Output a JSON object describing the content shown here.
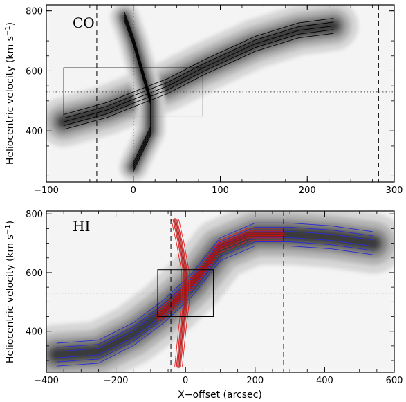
{
  "chart_data": [
    {
      "type": "contour",
      "panel_label": "CO",
      "xlabel": "",
      "ylabel": "Heliocentric velocity (km s",
      "ylabel_sup": "−1",
      "ylabel_close": ")",
      "xlim": [
        -100,
        300
      ],
      "ylim": [
        230,
        820
      ],
      "xticks": [
        -100,
        0,
        100,
        200,
        300
      ],
      "xtick_labels": [
        "−100",
        "0",
        "100",
        "200",
        "300"
      ],
      "yticks": [
        400,
        600,
        800
      ],
      "ytick_labels": [
        "400",
        "600",
        "800"
      ],
      "grayscale_ridges": [
        {
          "points": [
            [
              -80,
              430
            ],
            [
              -30,
              470
            ],
            [
              0,
              505
            ],
            [
              40,
              550
            ],
            [
              80,
              610
            ],
            [
              140,
              690
            ],
            [
              190,
              735
            ],
            [
              230,
              750
            ]
          ],
          "width": 45
        },
        {
          "points": [
            [
              -10,
              780
            ],
            [
              0,
              700
            ],
            [
              10,
              600
            ],
            [
              20,
              500
            ],
            [
              20,
              400
            ],
            [
              0,
              280
            ]
          ],
          "width": 26
        }
      ],
      "dashed_vlines": [
        -42,
        282
      ],
      "dotted_vline": 0,
      "dotted_hline": 530,
      "box": {
        "x": [
          -80,
          80
        ],
        "y": [
          450,
          610
        ]
      },
      "contour_color": "#000000"
    },
    {
      "type": "contour",
      "panel_label": "HI",
      "xlabel": "X−offset (arcsec)",
      "ylabel": "Heliocentric velocity (km s",
      "ylabel_sup": "−1",
      "ylabel_close": ")",
      "xlim": [
        -400,
        600
      ],
      "ylim": [
        260,
        810
      ],
      "xticks": [
        -400,
        -200,
        0,
        200,
        400,
        600
      ],
      "xtick_labels": [
        "−400",
        "−200",
        "0",
        "200",
        "400",
        "600"
      ],
      "yticks": [
        400,
        600,
        800
      ],
      "ytick_labels": [
        "400",
        "600",
        "800"
      ],
      "grayscale_ridges": [
        {
          "points": [
            [
              -370,
              320
            ],
            [
              -250,
              330
            ],
            [
              -150,
              390
            ],
            [
              -60,
              470
            ],
            [
              20,
              560
            ],
            [
              100,
              680
            ],
            [
              200,
              730
            ],
            [
              300,
              730
            ],
            [
              420,
              720
            ],
            [
              540,
              700
            ]
          ],
          "width": 55
        }
      ],
      "red_ridges": [
        {
          "points": [
            [
              -80,
              450
            ],
            [
              -30,
              500
            ],
            [
              0,
              540
            ],
            [
              50,
              610
            ],
            [
              100,
              690
            ],
            [
              180,
              730
            ],
            [
              280,
              730
            ]
          ],
          "width": 40
        },
        {
          "points": [
            [
              -30,
              780
            ],
            [
              -15,
              700
            ],
            [
              0,
              600
            ],
            [
              0,
              500
            ],
            [
              -10,
              400
            ],
            [
              -20,
              280
            ]
          ],
          "width": 30
        }
      ],
      "dashed_vlines": [
        -42,
        282
      ],
      "dotted_hline": 530,
      "box": {
        "x": [
          -80,
          80
        ],
        "y": [
          450,
          610
        ]
      },
      "contour_colors": [
        "#2a2ad8",
        "#e81a1a"
      ]
    }
  ]
}
